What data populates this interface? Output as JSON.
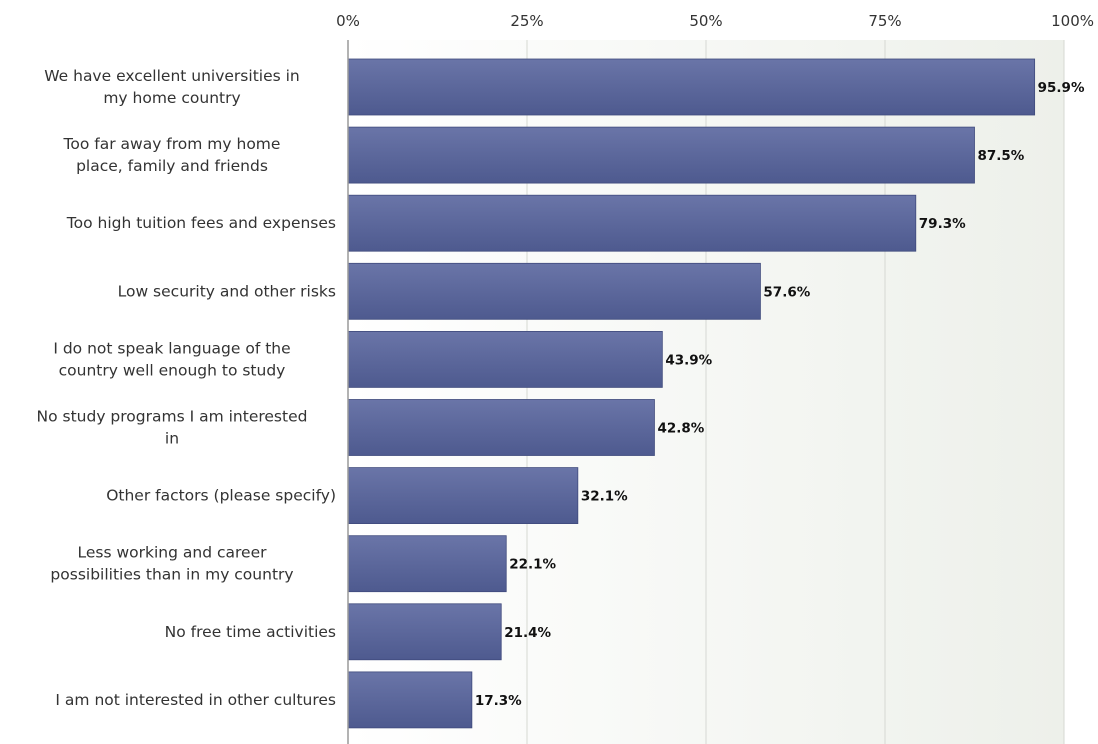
{
  "chart_data": {
    "type": "bar",
    "orientation": "horizontal",
    "title": "",
    "xlabel": "",
    "ylabel": "",
    "xlim": [
      0,
      100
    ],
    "ticks": [
      0,
      25,
      50,
      75,
      100
    ],
    "tick_labels": [
      "0%",
      "25%",
      "50%",
      "75%",
      "100%"
    ],
    "grid": true,
    "categories": [
      [
        "We have excellent universities in",
        "my home country"
      ],
      [
        "Too far away from my home",
        "place, family and friends"
      ],
      [
        "Too high tuition fees and expenses"
      ],
      [
        "Low security and other risks"
      ],
      [
        "I do not speak language of the",
        "country well enough to study"
      ],
      [
        "No study programs I am interested",
        "in"
      ],
      [
        "Other factors (please specify)"
      ],
      [
        "Less working and career",
        "possibilities than in my country"
      ],
      [
        "No free time activities"
      ],
      [
        "I am not interested in other cultures"
      ]
    ],
    "values": [
      95.9,
      87.5,
      79.3,
      57.6,
      43.9,
      42.8,
      32.1,
      22.1,
      21.4,
      17.3
    ],
    "value_labels": [
      "95.9%",
      "87.5%",
      "79.3%",
      "57.6%",
      "43.9%",
      "42.8%",
      "32.1%",
      "22.1%",
      "21.4%",
      "17.3%"
    ],
    "colors": {
      "bar_top": "#6a75a8",
      "bar_bottom": "#4e5a8f",
      "bar_edge": "#3f4a7c",
      "plot_bg_left": "#ffffff",
      "plot_bg_right": "#edf0ea"
    }
  }
}
